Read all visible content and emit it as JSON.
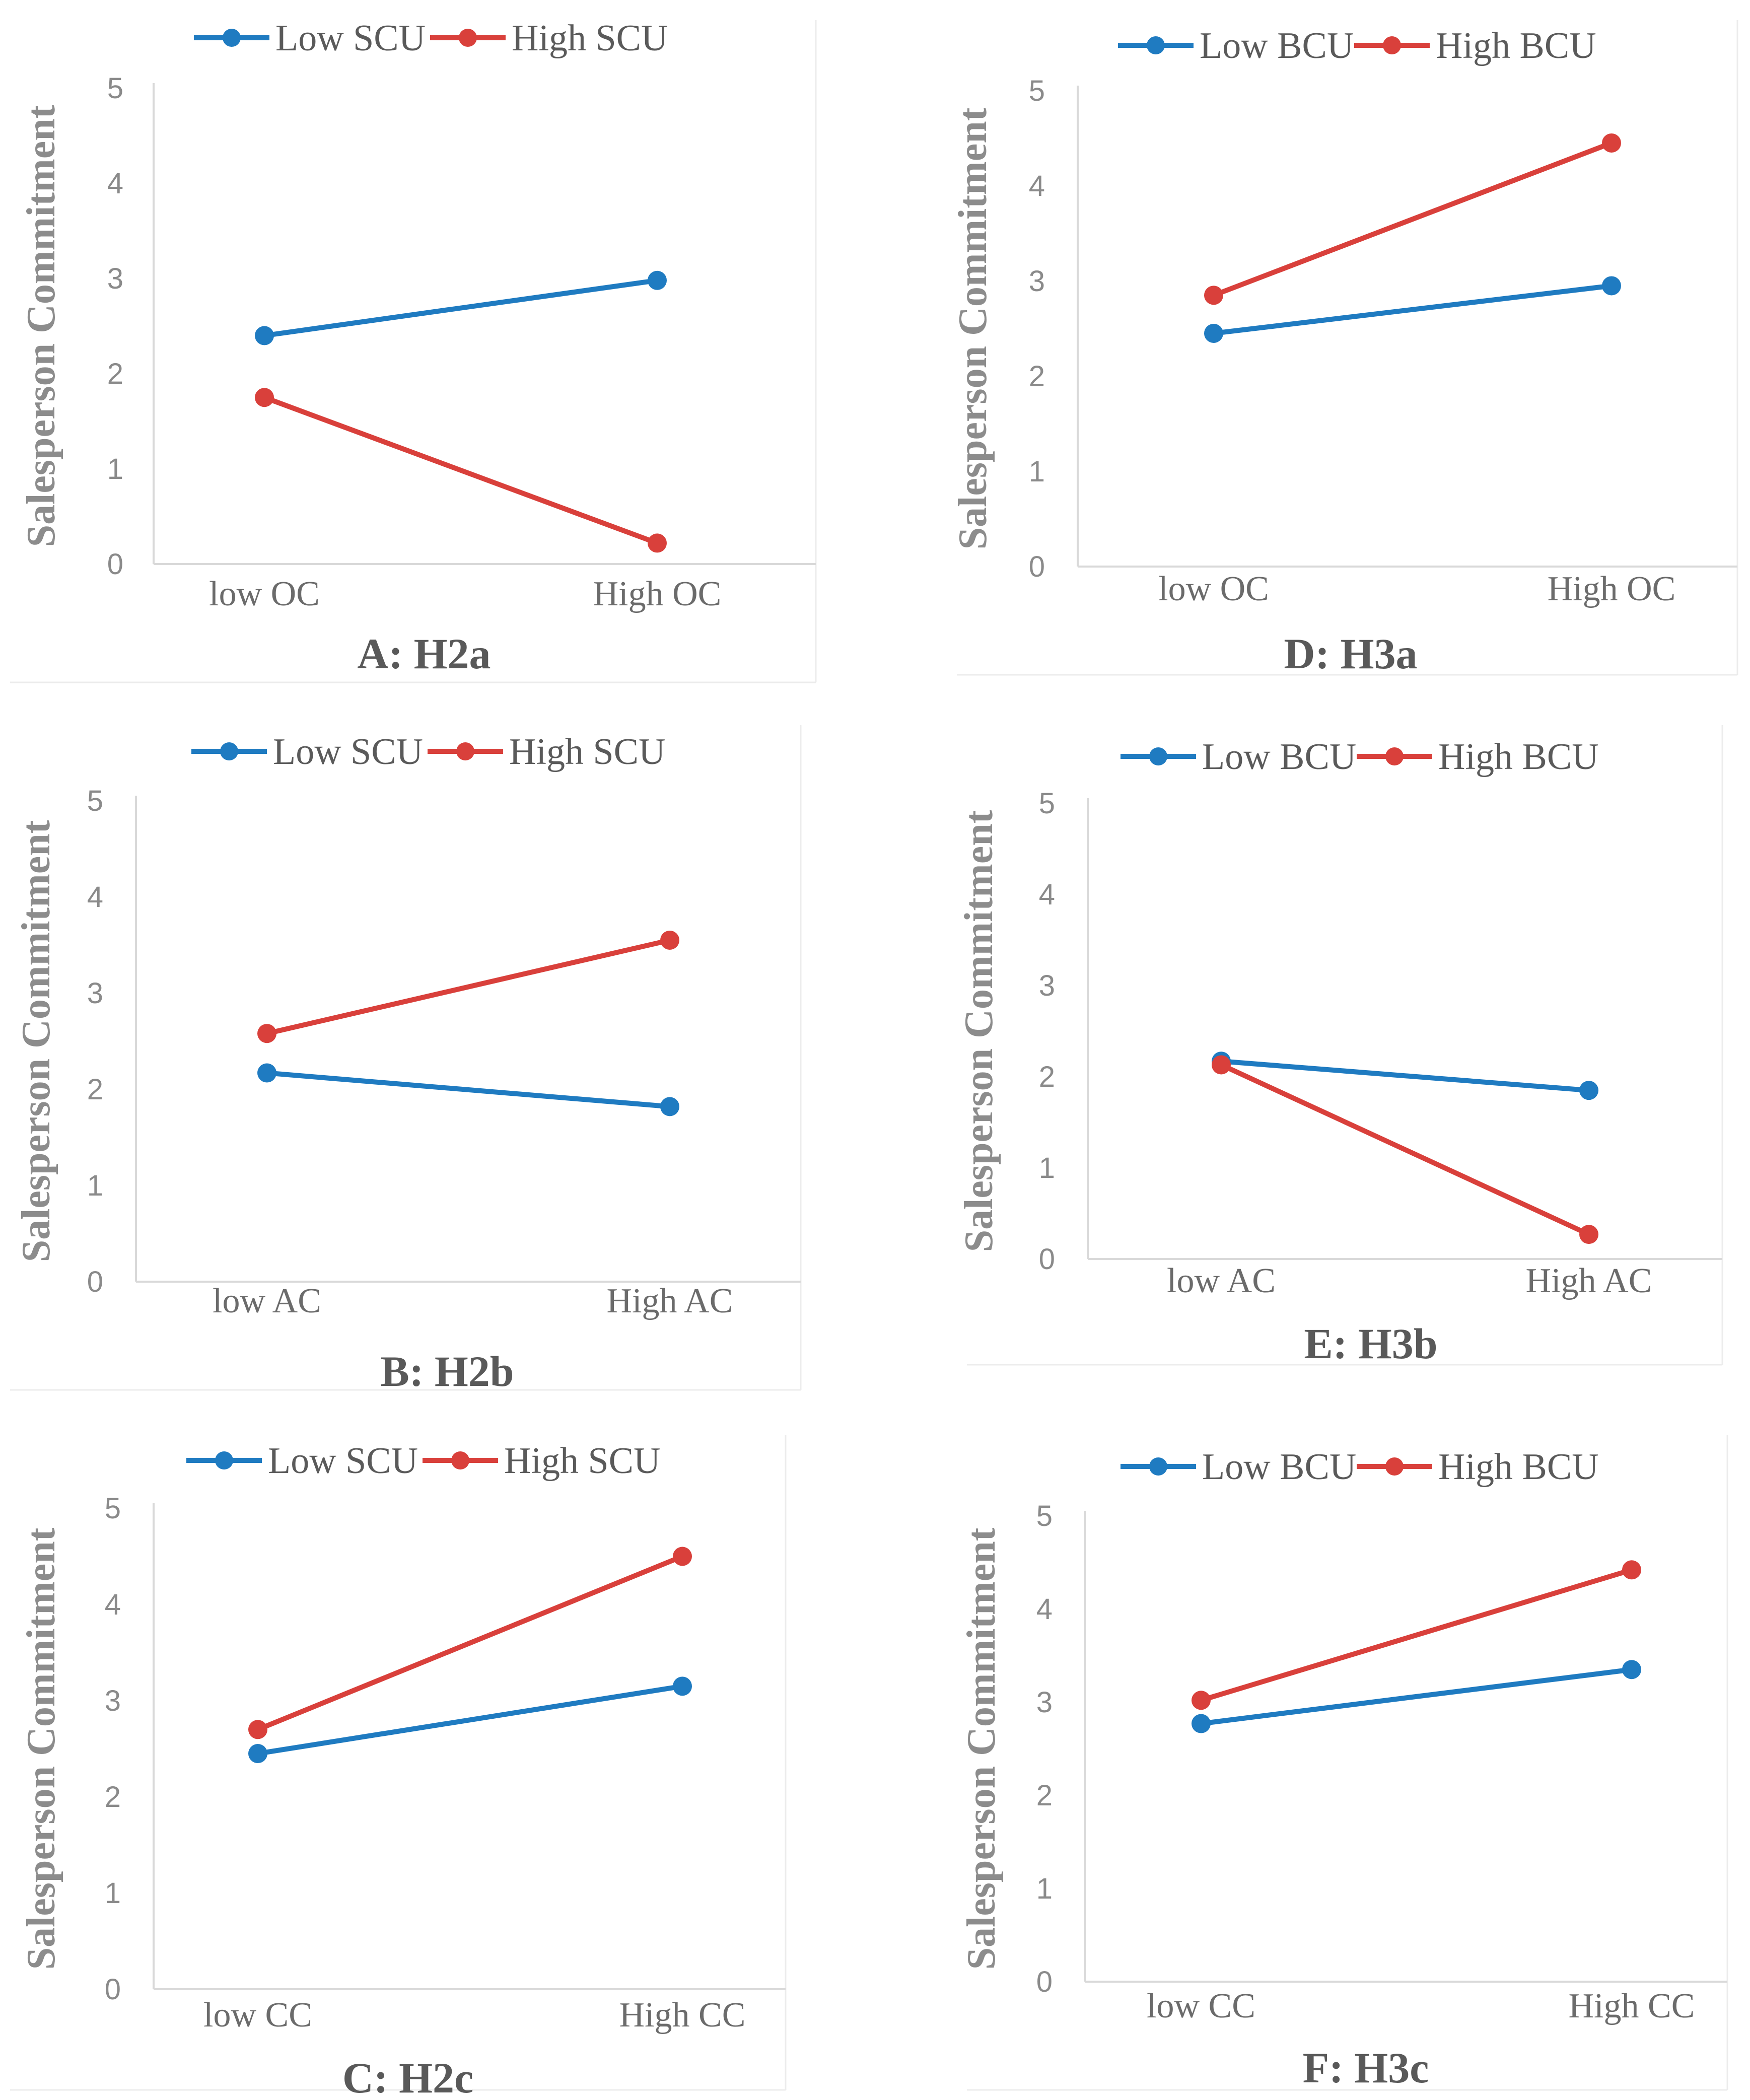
{
  "colors": {
    "low": "#1f7bc1",
    "high": "#d9403b",
    "axis": "#d9d9d9",
    "frame": "#ececec"
  },
  "axis_label": "Salesperson Commitment",
  "chart_data": [
    {
      "id": "A",
      "type": "line",
      "caption": "A: H2a",
      "ylabel": "Salesperson Commitment",
      "ylim": [
        0,
        5
      ],
      "yticks": [
        "0",
        "1",
        "2",
        "3",
        "4",
        "5"
      ],
      "categories": [
        "low OC",
        "High OC"
      ],
      "series": [
        {
          "name": "Low SCU",
          "values": [
            2.4,
            2.98
          ]
        },
        {
          "name": "High SCU",
          "values": [
            1.75,
            0.22
          ]
        }
      ]
    },
    {
      "id": "D",
      "type": "line",
      "caption": "D: H3a",
      "ylabel": "Salesperson Commitment",
      "ylim": [
        0,
        5
      ],
      "yticks": [
        "0",
        "1",
        "2",
        "3",
        "4",
        "5"
      ],
      "categories": [
        "low OC",
        "High OC"
      ],
      "series": [
        {
          "name": "Low BCU",
          "values": [
            2.45,
            2.95
          ]
        },
        {
          "name": "High BCU",
          "values": [
            2.85,
            4.45
          ]
        }
      ]
    },
    {
      "id": "B",
      "type": "line",
      "caption": "B: H2b",
      "ylabel": "Salesperson Commitment",
      "ylim": [
        0,
        5
      ],
      "yticks": [
        "0",
        "1",
        "2",
        "3",
        "4",
        "5"
      ],
      "categories": [
        "low AC",
        "High AC"
      ],
      "series": [
        {
          "name": "Low SCU",
          "values": [
            2.17,
            1.82
          ]
        },
        {
          "name": "High SCU",
          "values": [
            2.58,
            3.55
          ]
        }
      ]
    },
    {
      "id": "E",
      "type": "line",
      "caption": "E: H3b",
      "ylabel": "Salesperson Commitment",
      "ylim": [
        0,
        5
      ],
      "yticks": [
        "0",
        "1",
        "2",
        "3",
        "4",
        "5"
      ],
      "categories": [
        "low AC",
        "High AC"
      ],
      "series": [
        {
          "name": "Low BCU",
          "values": [
            2.17,
            1.85
          ]
        },
        {
          "name": "High BCU",
          "values": [
            2.13,
            0.27
          ]
        }
      ]
    },
    {
      "id": "C",
      "type": "line",
      "caption": "C: H2c",
      "ylabel": "Salesperson Commitment",
      "ylim": [
        0,
        5
      ],
      "yticks": [
        "0",
        "1",
        "2",
        "3",
        "4",
        "5"
      ],
      "categories": [
        "low CC",
        "High CC"
      ],
      "series": [
        {
          "name": "Low SCU",
          "values": [
            2.45,
            3.15
          ]
        },
        {
          "name": "High SCU",
          "values": [
            2.7,
            4.5
          ]
        }
      ]
    },
    {
      "id": "F",
      "type": "line",
      "caption": "F: H3c",
      "ylabel": "Salesperson Commitment",
      "ylim": [
        0,
        5
      ],
      "yticks": [
        "0",
        "1",
        "2",
        "3",
        "4",
        "5"
      ],
      "categories": [
        "low CC",
        "High CC"
      ],
      "series": [
        {
          "name": "Low BCU",
          "values": [
            2.77,
            3.35
          ]
        },
        {
          "name": "High BCU",
          "values": [
            3.02,
            4.42
          ]
        }
      ]
    }
  ]
}
